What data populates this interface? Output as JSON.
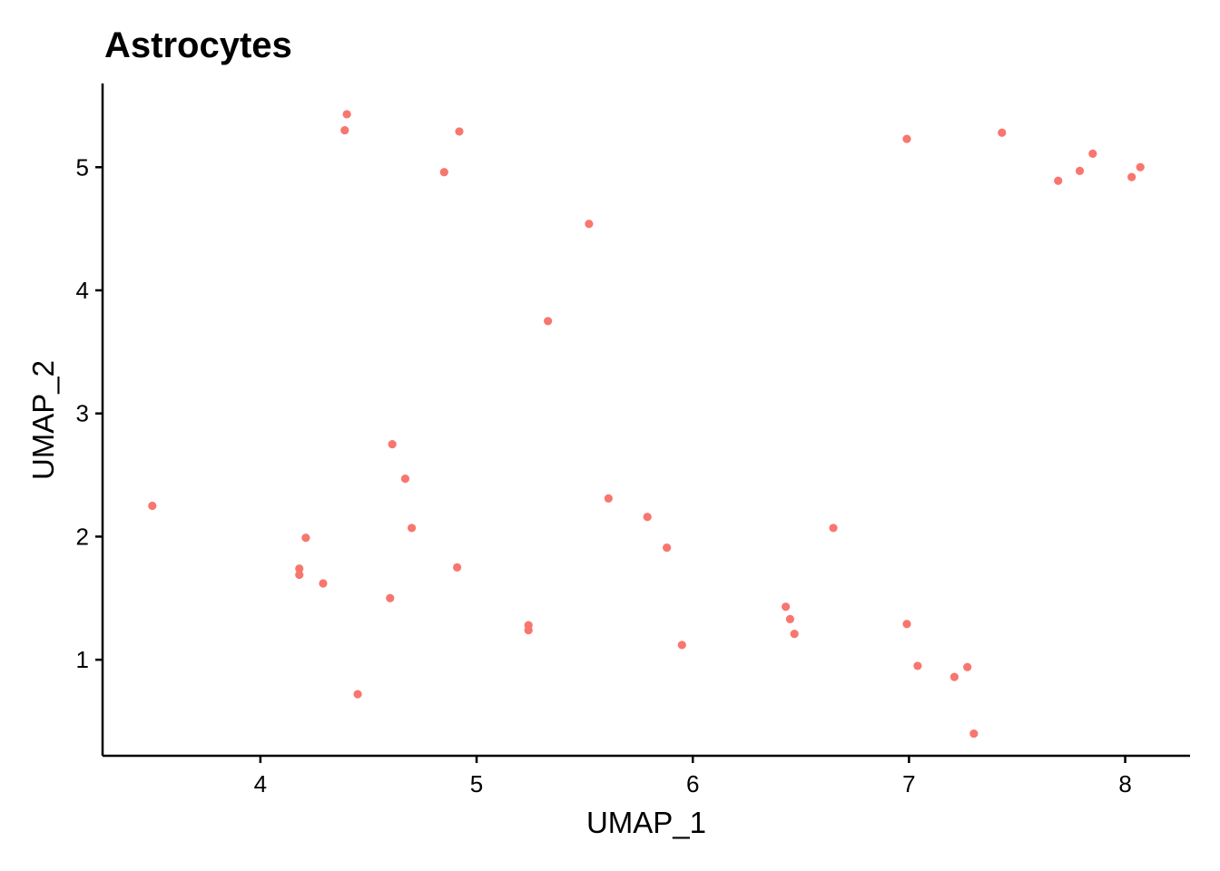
{
  "chart_data": {
    "type": "scatter",
    "title": "Astrocytes",
    "xlabel": "UMAP_1",
    "ylabel": "UMAP_2",
    "xlim": [
      3.27,
      8.3
    ],
    "ylim": [
      0.22,
      5.68
    ],
    "xticks": [
      4,
      5,
      6,
      7,
      8
    ],
    "yticks": [
      1,
      2,
      3,
      4,
      5
    ],
    "grid": false,
    "legend": "none",
    "point_color": "#F8766D",
    "points": [
      {
        "x": 4.4,
        "y": 5.43
      },
      {
        "x": 4.39,
        "y": 5.3
      },
      {
        "x": 4.92,
        "y": 5.29
      },
      {
        "x": 4.85,
        "y": 4.96
      },
      {
        "x": 5.52,
        "y": 4.54
      },
      {
        "x": 5.33,
        "y": 3.75
      },
      {
        "x": 6.99,
        "y": 5.23
      },
      {
        "x": 7.43,
        "y": 5.28
      },
      {
        "x": 7.85,
        "y": 5.11
      },
      {
        "x": 7.79,
        "y": 4.97
      },
      {
        "x": 7.69,
        "y": 4.89
      },
      {
        "x": 8.03,
        "y": 4.92
      },
      {
        "x": 8.07,
        "y": 5.0
      },
      {
        "x": 3.5,
        "y": 2.25
      },
      {
        "x": 4.61,
        "y": 2.75
      },
      {
        "x": 4.67,
        "y": 2.47
      },
      {
        "x": 4.7,
        "y": 2.07
      },
      {
        "x": 4.21,
        "y": 1.99
      },
      {
        "x": 4.18,
        "y": 1.74
      },
      {
        "x": 4.18,
        "y": 1.69
      },
      {
        "x": 4.29,
        "y": 1.62
      },
      {
        "x": 4.91,
        "y": 1.75
      },
      {
        "x": 4.6,
        "y": 1.5
      },
      {
        "x": 4.45,
        "y": 0.72
      },
      {
        "x": 5.24,
        "y": 1.28
      },
      {
        "x": 5.24,
        "y": 1.24
      },
      {
        "x": 5.61,
        "y": 2.31
      },
      {
        "x": 5.79,
        "y": 2.16
      },
      {
        "x": 5.88,
        "y": 1.91
      },
      {
        "x": 5.95,
        "y": 1.12
      },
      {
        "x": 6.65,
        "y": 2.07
      },
      {
        "x": 6.43,
        "y": 1.43
      },
      {
        "x": 6.45,
        "y": 1.33
      },
      {
        "x": 6.47,
        "y": 1.21
      },
      {
        "x": 6.99,
        "y": 1.29
      },
      {
        "x": 7.04,
        "y": 0.95
      },
      {
        "x": 7.21,
        "y": 0.86
      },
      {
        "x": 7.27,
        "y": 0.94
      },
      {
        "x": 7.3,
        "y": 0.4
      }
    ]
  }
}
